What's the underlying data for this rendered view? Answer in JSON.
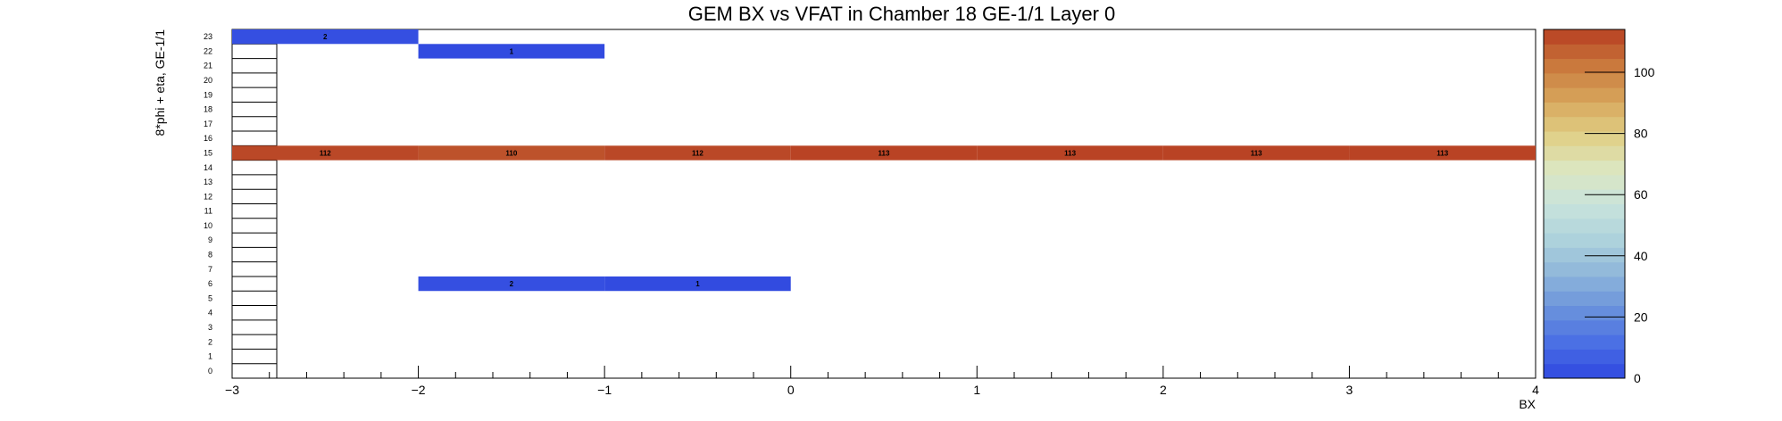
{
  "chart_data": {
    "type": "heatmap",
    "title": "GEM BX vs VFAT in Chamber 18 GE-1/1 Layer 0",
    "xlabel": "BX",
    "ylabel": "8*phi + eta, GE-1/1",
    "xlim": [
      -3,
      4
    ],
    "ylim": [
      0,
      24
    ],
    "x_ticks": [
      "−3",
      "−2",
      "−1",
      "0",
      "1",
      "2",
      "3",
      "4"
    ],
    "y_ticks": [
      "0",
      "1",
      "2",
      "3",
      "4",
      "5",
      "6",
      "7",
      "8",
      "9",
      "10",
      "11",
      "12",
      "13",
      "14",
      "15",
      "16",
      "17",
      "18",
      "19",
      "20",
      "21",
      "22",
      "23"
    ],
    "z_range": [
      0,
      114
    ],
    "colorbar_ticks": [
      "0",
      "20",
      "40",
      "60",
      "80",
      "100"
    ],
    "cells": [
      {
        "x0": -3,
        "x1": -2,
        "y": 23,
        "value": 2,
        "label": "2"
      },
      {
        "x0": -2,
        "x1": -1,
        "y": 22,
        "value": 1,
        "label": "1"
      },
      {
        "x0": -3,
        "x1": -2,
        "y": 15,
        "value": 112,
        "label": "112"
      },
      {
        "x0": -2,
        "x1": -1,
        "y": 15,
        "value": 110,
        "label": "110"
      },
      {
        "x0": -1,
        "x1": 0,
        "y": 15,
        "value": 112,
        "label": "112"
      },
      {
        "x0": 0,
        "x1": 1,
        "y": 15,
        "value": 113,
        "label": "113"
      },
      {
        "x0": 1,
        "x1": 2,
        "y": 15,
        "value": 113,
        "label": "113"
      },
      {
        "x0": 2,
        "x1": 3,
        "y": 15,
        "value": 113,
        "label": "113"
      },
      {
        "x0": 3,
        "x1": 4,
        "y": 15,
        "value": 113,
        "label": "113"
      },
      {
        "x0": -2,
        "x1": -1,
        "y": 6,
        "value": 2,
        "label": "2"
      },
      {
        "x0": -1,
        "x1": 0,
        "y": 6,
        "value": 1,
        "label": "1"
      }
    ],
    "colors": {
      "low": "#3048e0",
      "high": "#b73e22"
    },
    "legend": "colorbar-right",
    "grid": false
  }
}
